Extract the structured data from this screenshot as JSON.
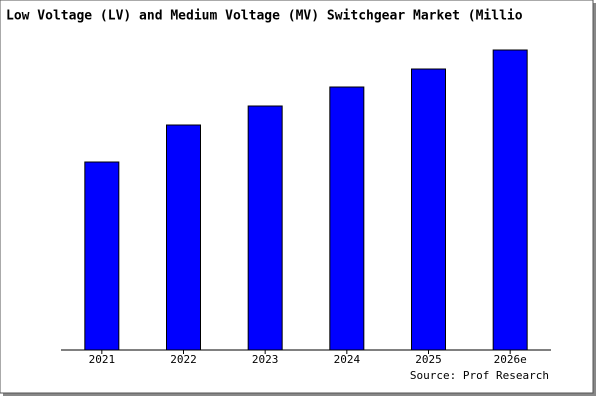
{
  "chart_data": {
    "type": "bar",
    "title": "Low Voltage (LV) and Medium Voltage (MV) Switchgear Market (Millio",
    "categories": [
      "2021",
      "2022",
      "2023",
      "2024",
      "2025",
      "2026e"
    ],
    "values": [
      188,
      225,
      244,
      263,
      281,
      300
    ],
    "color": "#0000ff",
    "source": "Source: Prof Research"
  }
}
